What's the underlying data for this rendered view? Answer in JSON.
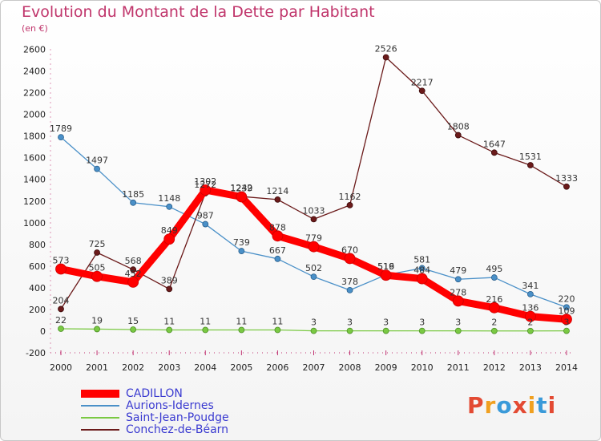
{
  "title": "Evolution du Montant de la Dette par Habitant",
  "subtitle": "(en €)",
  "logo": "Proxiti",
  "logo_colors": [
    "#e34a33",
    "#f0a020",
    "#3a9ad9",
    "#e34a33",
    "#f0a020",
    "#3a9ad9",
    "#e34a33"
  ],
  "chart_data": {
    "type": "line",
    "title": "Evolution du Montant de la Dette par Habitant",
    "subtitle": "(en €)",
    "x": [
      "2000",
      "2001",
      "2002",
      "2003",
      "2004",
      "2005",
      "2006",
      "2007",
      "2008",
      "2009",
      "2010",
      "2011",
      "2012",
      "2013",
      "2014"
    ],
    "ylim": [
      -200,
      2600
    ],
    "yticks": [
      -200,
      0,
      200,
      400,
      600,
      800,
      1000,
      1200,
      1400,
      1600,
      1800,
      2000,
      2200,
      2400,
      2600
    ],
    "grid": false,
    "legend": "bottom-left",
    "series": [
      {
        "name": "CADILLON",
        "color": "#ff0000",
        "values": [
          573,
          505,
          452,
          849,
          1302,
          1239,
          878,
          779,
          670,
          516,
          484,
          278,
          216,
          136,
          109
        ]
      },
      {
        "name": "Aurions-Idernes",
        "color": "#4a90c8",
        "values": [
          1789,
          1497,
          1185,
          1148,
          987,
          739,
          667,
          502,
          378,
          519,
          581,
          479,
          495,
          341,
          220
        ]
      },
      {
        "name": "Saint-Jean-Poudge",
        "color": "#7ac943",
        "values": [
          22,
          19,
          15,
          11,
          11,
          11,
          11,
          3,
          3,
          3,
          3,
          3,
          2,
          2,
          3
        ]
      },
      {
        "name": "Conchez-de-Béarn",
        "color": "#6b1a1a",
        "values": [
          204,
          725,
          568,
          389,
          1272,
          1242,
          1214,
          1033,
          1162,
          2526,
          2217,
          1808,
          1647,
          1531,
          1333
        ]
      }
    ]
  }
}
